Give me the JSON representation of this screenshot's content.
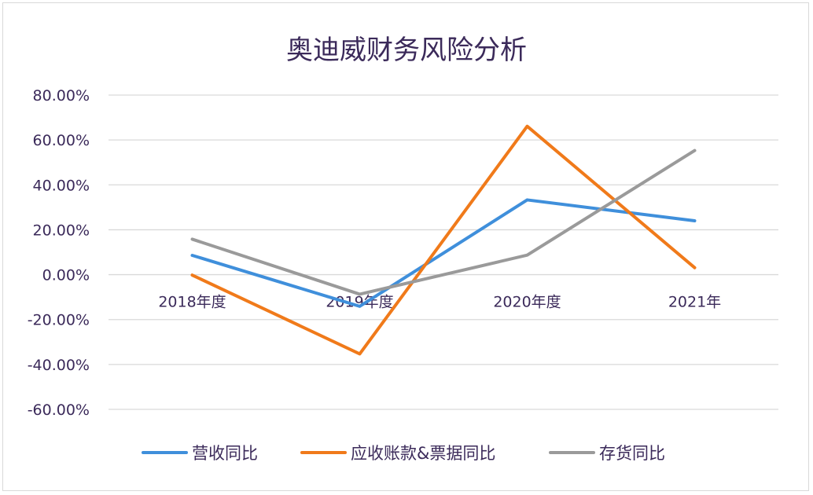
{
  "chart_data": {
    "type": "line",
    "title": "奥迪威财务风险分析",
    "categories": [
      "2018年度",
      "2019年度",
      "2020年度",
      "2021年"
    ],
    "series": [
      {
        "name": "营收同比",
        "color": "#3f8fdb",
        "values": [
          8.6,
          -14.1,
          33.3,
          24.0
        ]
      },
      {
        "name": "应收账款&票据同比",
        "color": "#f07a1a",
        "values": [
          -0.2,
          -35.3,
          66.1,
          3.1
        ]
      },
      {
        "name": "存货同比",
        "color": "#9a9a9a",
        "values": [
          15.8,
          -8.7,
          8.7,
          55.3
        ]
      }
    ],
    "ylim": [
      -60,
      80
    ],
    "yticks": [
      80,
      60,
      40,
      20,
      0,
      -20,
      -40,
      -60
    ],
    "ytick_labels": [
      "80.00%",
      "60.00%",
      "40.00%",
      "20.00%",
      "0.00%",
      "-20.00%",
      "-40.00%",
      "-60.00%"
    ],
    "xlabel": "",
    "ylabel": "",
    "grid": true,
    "legend_position": "bottom"
  }
}
